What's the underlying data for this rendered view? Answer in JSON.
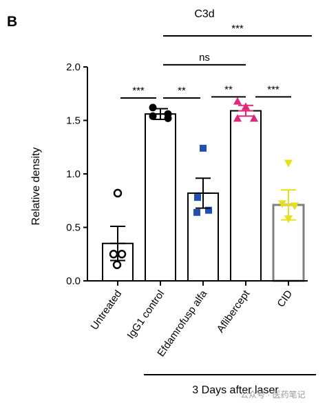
{
  "chart_data": {
    "type": "bar",
    "panel_label": "B",
    "title": "C3d",
    "ylabel": "Relative density",
    "ylim": [
      0,
      2.0
    ],
    "yticks": [
      "0.0",
      "0.5",
      "1.0",
      "1.5",
      "2.0"
    ],
    "ytick_values": [
      0,
      0.5,
      1.0,
      1.5,
      2.0
    ],
    "categories": [
      "Untreated",
      "IgG1 control",
      "Efdamrofusp alfa",
      "Aflibercept",
      "CID"
    ],
    "values": [
      0.35,
      1.56,
      0.82,
      1.59,
      0.71
    ],
    "errors": [
      0.16,
      0.05,
      0.14,
      0.05,
      0.14
    ],
    "bar_edge_colors": [
      "#000000",
      "#000000",
      "#000000",
      "#000000",
      "#808080"
    ],
    "marker_colors": [
      "#000000",
      "#000000",
      "#1f4fb5",
      "#e0287a",
      "#e6e019"
    ],
    "markers": [
      "circle-open",
      "circle",
      "square",
      "triangle-up",
      "triangle-down"
    ],
    "points": [
      [
        0.82,
        0.25,
        0.25,
        0.15
      ],
      [
        1.62,
        1.56,
        1.54,
        1.52
      ],
      [
        1.24,
        0.78,
        0.66,
        0.64
      ],
      [
        1.68,
        1.63,
        1.52,
        1.52
      ],
      [
        1.1,
        0.72,
        0.7,
        0.58
      ]
    ],
    "significance": [
      {
        "from": 0,
        "to": 1,
        "label": "***",
        "level": 1.71
      },
      {
        "from": 1,
        "to": 2,
        "label": "**",
        "level": 1.71
      },
      {
        "from": 1,
        "to": 3,
        "label": "ns",
        "level": 2.02
      },
      {
        "from": 1,
        "to": 4,
        "label": "***",
        "level": 2.29
      },
      {
        "from": 2,
        "to": 3,
        "label": "**",
        "level": 1.72
      },
      {
        "from": 3,
        "to": 4,
        "label": "***",
        "level": 1.72
      }
    ],
    "group_label": "3 Days after laser",
    "group_from": 1,
    "group_to": 4
  },
  "watermark": "公众号 · 医药笔记"
}
